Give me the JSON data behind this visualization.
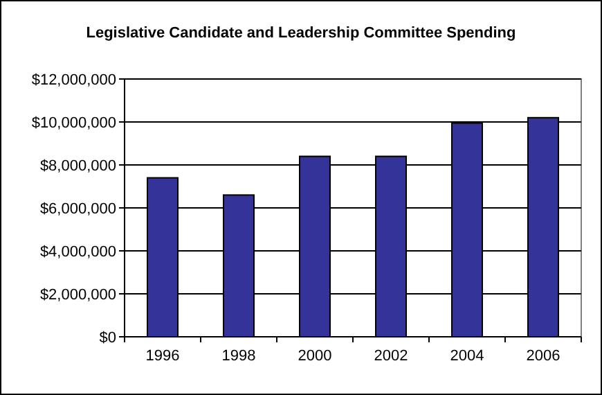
{
  "chart_data": {
    "type": "bar",
    "title": "Legislative Candidate and Leadership Committee Spending",
    "categories": [
      "1996",
      "1998",
      "2000",
      "2002",
      "2004",
      "2006"
    ],
    "values": [
      7400000,
      6600000,
      8400000,
      8400000,
      9950000,
      10200000
    ],
    "color": "#333399",
    "ylim": [
      0,
      12000000
    ],
    "yticks": [
      {
        "value": 0,
        "label": "$0"
      },
      {
        "value": 2000000,
        "label": "$2,000,000"
      },
      {
        "value": 4000000,
        "label": "$4,000,000"
      },
      {
        "value": 6000000,
        "label": "$6,000,000"
      },
      {
        "value": 8000000,
        "label": "$8,000,000"
      },
      {
        "value": 10000000,
        "label": "$10,000,000"
      },
      {
        "value": 12000000,
        "label": "$12,000,000"
      }
    ],
    "grid": "y"
  }
}
